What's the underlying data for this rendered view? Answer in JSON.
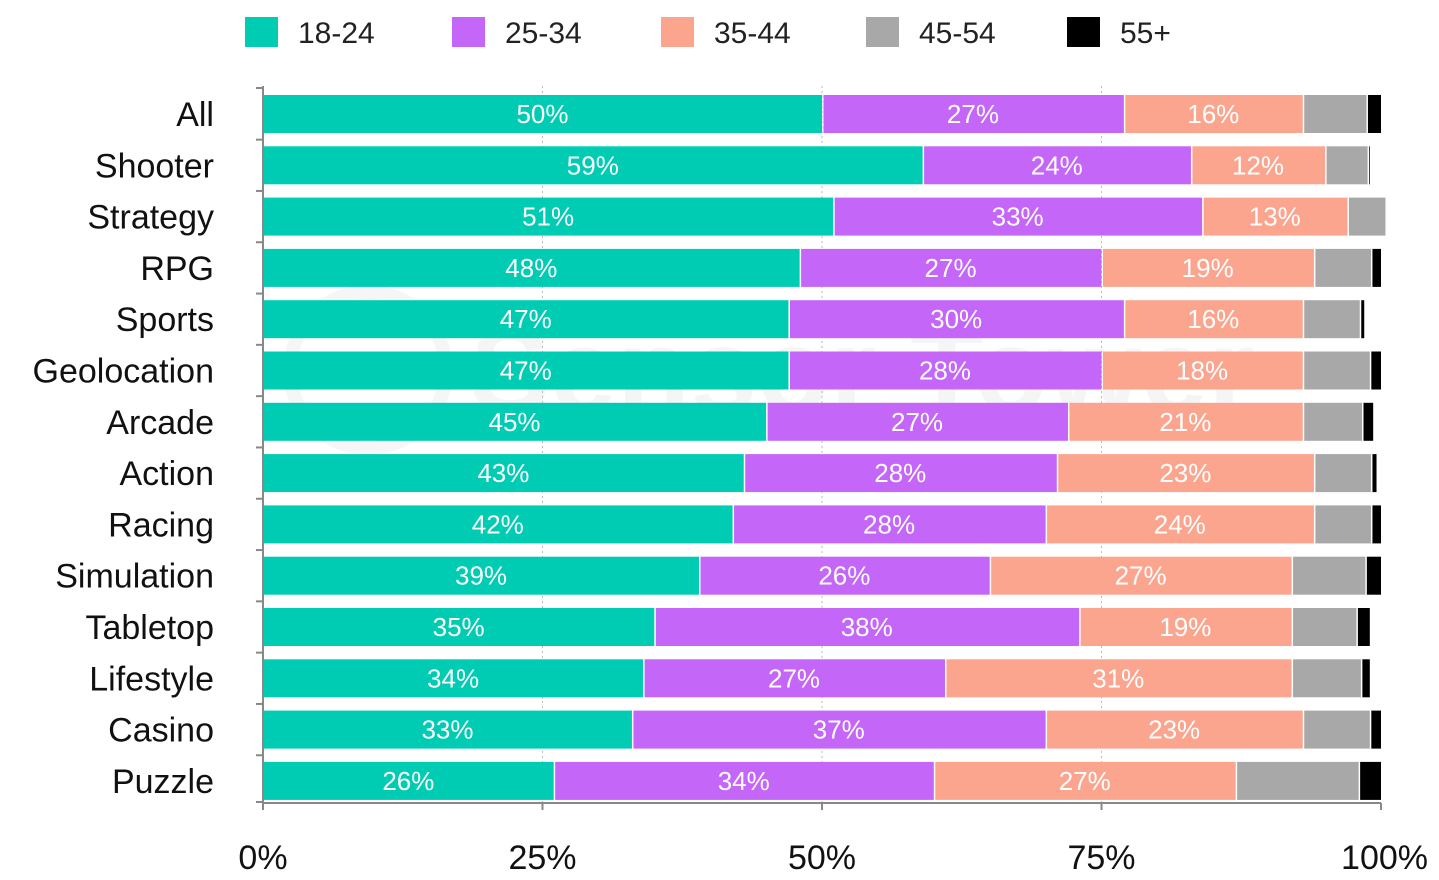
{
  "chart_data": {
    "type": "bar",
    "orientation": "horizontal",
    "stacked": true,
    "categories": [
      "All",
      "Shooter",
      "Strategy",
      "RPG",
      "Sports",
      "Geolocation",
      "Arcade",
      "Action",
      "Racing",
      "Simulation",
      "Tabletop",
      "Lifestyle",
      "Casino",
      "Puzzle"
    ],
    "series": [
      {
        "name": "18-24",
        "color": "#00ccb4",
        "values": [
          50,
          59,
          51,
          48,
          47,
          47,
          45,
          43,
          42,
          39,
          35,
          34,
          33,
          26
        ]
      },
      {
        "name": "25-34",
        "color": "#c466f7",
        "values": [
          27,
          24,
          33,
          27,
          30,
          28,
          27,
          28,
          28,
          26,
          38,
          27,
          37,
          34
        ]
      },
      {
        "name": "35-44",
        "color": "#fba58f",
        "values": [
          16,
          12,
          13,
          19,
          16,
          18,
          21,
          23,
          24,
          27,
          19,
          31,
          23,
          27
        ]
      },
      {
        "name": "45-54",
        "color": "#a8a8a8",
        "values": [
          5.7,
          3.8,
          3.4,
          5.1,
          5.1,
          6.0,
          5.3,
          5.1,
          5.1,
          6.6,
          5.8,
          6.2,
          6.0,
          11
        ]
      },
      {
        "name": "55+",
        "color": "#000000",
        "values": [
          1.3,
          0.2,
          0.1,
          0.9,
          0.4,
          1.0,
          1.0,
          0.5,
          0.9,
          1.4,
          1.2,
          0.8,
          1.0,
          2.0
        ]
      }
    ],
    "data_labels": {
      "18-24": [
        "50%",
        "59%",
        "51%",
        "48%",
        "47%",
        "47%",
        "45%",
        "43%",
        "42%",
        "39%",
        "35%",
        "34%",
        "33%",
        "26%"
      ],
      "25-34": [
        "27%",
        "24%",
        "33%",
        "27%",
        "30%",
        "28%",
        "27%",
        "28%",
        "28%",
        "26%",
        "38%",
        "27%",
        "37%",
        "34%"
      ],
      "35-44": [
        "16%",
        "12%",
        "13%",
        "19%",
        "16%",
        "18%",
        "21%",
        "23%",
        "24%",
        "27%",
        "19%",
        "31%",
        "23%",
        "27%"
      ]
    },
    "x_ticks": [
      "0%",
      "25%",
      "50%",
      "75%",
      "100%"
    ],
    "xlim": [
      0,
      100
    ],
    "grid": true,
    "legend_position": "top",
    "watermark": "Sensor Tower"
  }
}
